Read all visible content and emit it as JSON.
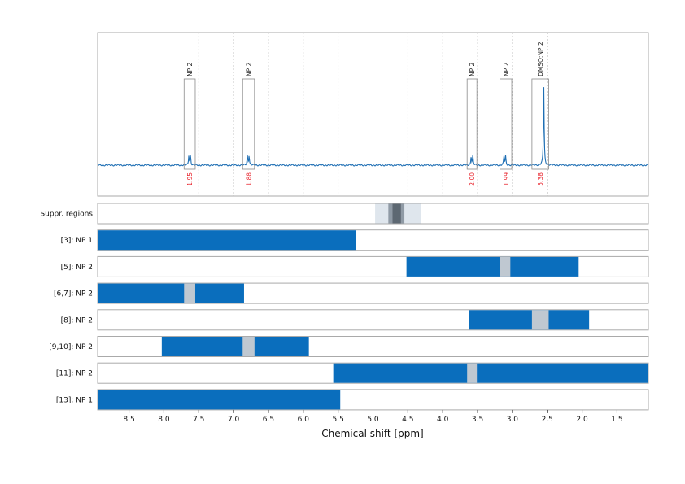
{
  "chart_data": {
    "type": "line",
    "x_axis": {
      "label": "Chemical shift [ppm]",
      "reversed": true,
      "range": [
        8.95,
        1.05
      ],
      "ticks": [
        8.5,
        8.0,
        7.5,
        7.0,
        6.5,
        6.0,
        5.5,
        5.0,
        4.5,
        4.0,
        3.5,
        3.0,
        2.5,
        2.0,
        1.5
      ],
      "tick_labels": [
        "8.5",
        "8.0",
        "7.5",
        "7.0",
        "6.5",
        "6.0",
        "5.5",
        "5.0",
        "4.5",
        "4.0",
        "3.5",
        "3.0",
        "2.5",
        "2.0",
        "1.5"
      ]
    },
    "spectrum": {
      "grid": "dotted vertical",
      "line_color": "#1f6fb4",
      "peaks": [
        {
          "ppm": 7.63,
          "label": "NP 2",
          "integral": "1.95",
          "window": [
            7.71,
            7.55
          ],
          "height": 0.22
        },
        {
          "ppm": 6.79,
          "label": "NP 2",
          "integral": "1.88",
          "window": [
            6.87,
            6.7
          ],
          "height": 0.22
        },
        {
          "ppm": 3.58,
          "label": "NP 2",
          "integral": "2.00",
          "window": [
            3.65,
            3.51
          ],
          "height": 0.2
        },
        {
          "ppm": 3.11,
          "label": "NP 2",
          "integral": "1.99",
          "window": [
            3.18,
            3.01
          ],
          "height": 0.2
        },
        {
          "ppm": 2.55,
          "label": "DMSO;NP 2",
          "integral": "5.38",
          "window": [
            2.72,
            2.48
          ],
          "height": 0.88
        }
      ]
    },
    "suppression": {
      "label": "Suppr. regions",
      "outer": [
        4.97,
        4.31
      ],
      "mid": [
        4.78,
        4.55
      ],
      "inner": [
        4.72,
        4.6
      ]
    },
    "tracks": [
      {
        "label": "[3]; NP 1",
        "ranges": [
          [
            8.95,
            5.25
          ]
        ],
        "gaps": []
      },
      {
        "label": "[5]; NP 2",
        "ranges": [
          [
            4.52,
            2.05
          ]
        ],
        "gaps": [
          [
            3.18,
            3.03
          ]
        ]
      },
      {
        "label": "[6,7]; NP 2",
        "ranges": [
          [
            8.95,
            6.85
          ]
        ],
        "gaps": [
          [
            7.71,
            7.55
          ]
        ]
      },
      {
        "label": "[8]; NP 2",
        "ranges": [
          [
            3.62,
            1.9
          ]
        ],
        "gaps": [
          [
            2.72,
            2.48
          ]
        ]
      },
      {
        "label": "[9,10]; NP 2",
        "ranges": [
          [
            8.03,
            5.92
          ]
        ],
        "gaps": [
          [
            6.87,
            6.7
          ]
        ]
      },
      {
        "label": "[11]; NP 2",
        "ranges": [
          [
            5.57,
            1.05
          ]
        ],
        "gaps": [
          [
            3.65,
            3.51
          ]
        ]
      },
      {
        "label": "[13]; NP 1",
        "ranges": [
          [
            8.95,
            5.47
          ]
        ],
        "gaps": []
      }
    ],
    "colors": {
      "bar": "#0a6ebd",
      "gap": "#bfc8d1",
      "supp_outer": "#dfe6ed",
      "supp_mid": "#8f9aa5",
      "supp_inner": "#5d6872",
      "integral": "#e8212a"
    }
  }
}
